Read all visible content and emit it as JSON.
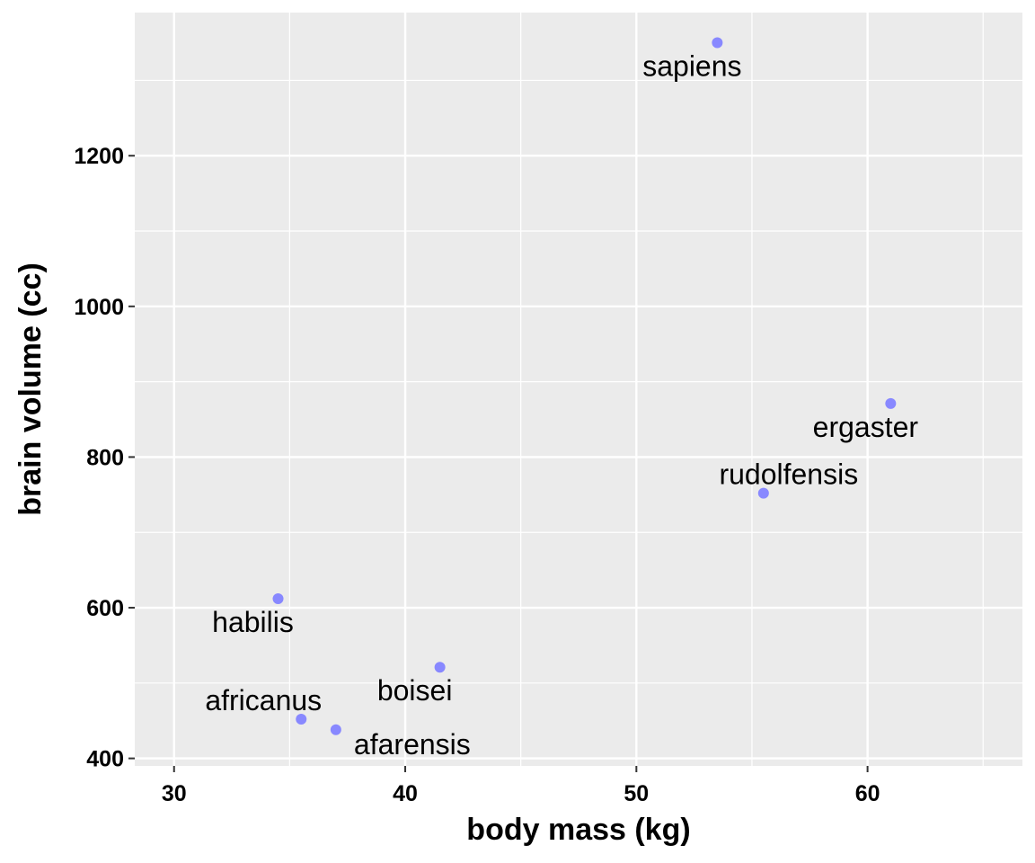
{
  "chart_data": {
    "type": "scatter",
    "xlabel": "body mass (kg)",
    "ylabel": "brain volume (cc)",
    "xlim": [
      28.3,
      66.7
    ],
    "ylim": [
      390,
      1390
    ],
    "x_ticks": [
      30,
      40,
      50,
      60
    ],
    "y_ticks": [
      400,
      600,
      800,
      1000,
      1200
    ],
    "x_tick_labels": [
      "30",
      "40",
      "50",
      "60"
    ],
    "y_tick_labels": [
      "400",
      "600",
      "800",
      "1000",
      "1200"
    ],
    "grid": true,
    "point_color": "#8888ff",
    "panel_color": "#ebebeb",
    "grid_color": "#ffffff",
    "points": [
      {
        "label": "afarensis",
        "x": 37.0,
        "y": 438,
        "label_pos": "below-right"
      },
      {
        "label": "africanus",
        "x": 35.5,
        "y": 452,
        "label_pos": "above-left"
      },
      {
        "label": "habilis",
        "x": 34.5,
        "y": 612,
        "label_pos": "below-left"
      },
      {
        "label": "boisei",
        "x": 41.5,
        "y": 521,
        "label_pos": "below-left"
      },
      {
        "label": "rudolfensis",
        "x": 55.5,
        "y": 752,
        "label_pos": "above"
      },
      {
        "label": "ergaster",
        "x": 61.0,
        "y": 871,
        "label_pos": "below-left"
      },
      {
        "label": "sapiens",
        "x": 53.5,
        "y": 1350,
        "label_pos": "below-left"
      }
    ]
  }
}
